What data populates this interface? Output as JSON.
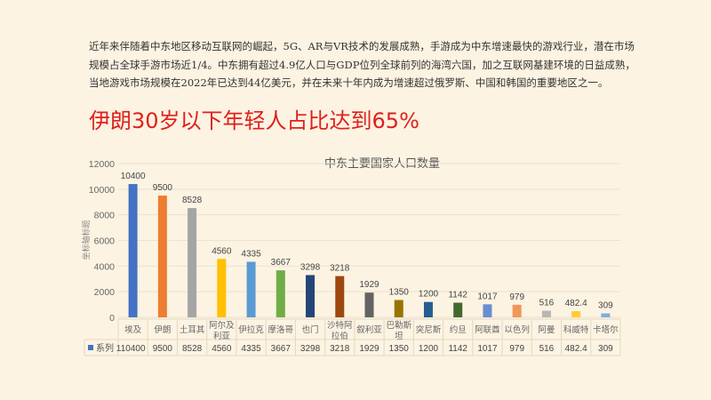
{
  "paragraph": [
    "近年来伴随着中东地区移动互联网的崛起，5G、AR与VR技术的发展成熟，手游成为中东增速最快的游戏行业，潜在市场",
    "规模占全球手游市场近1/4。中东拥有超过4.9亿人口与GDP位列全球前列的海湾六国，加之互联网基建环境的日益成熟，",
    "当地游戏市场规模在2022年已达到44亿美元，并在未来十年内成为增速超过俄罗斯、中国和韩国的重要地区之一。"
  ],
  "headline": "伊朗30岁以下年轻人占比达到65%",
  "chart_data": {
    "type": "bar",
    "title": "中东主要国家人口数量",
    "ylabel": "坐标轴标题",
    "xlabel": "",
    "ylim": [
      0,
      12000
    ],
    "yticks": [
      0,
      2000,
      4000,
      6000,
      8000,
      10000,
      12000
    ],
    "grid": true,
    "data_table": true,
    "categories": [
      "埃及",
      "伊朗",
      "土耳其",
      "阿尔及利亚",
      "伊拉克",
      "摩洛哥",
      "也门",
      "沙特阿拉伯",
      "叙利亚",
      "巴勒斯坦",
      "突尼斯",
      "约旦",
      "阿联酋",
      "以色列",
      "阿曼",
      "科威特",
      "卡塔尔"
    ],
    "category_lines": [
      [
        "埃及"
      ],
      [
        "伊朗"
      ],
      [
        "土耳其"
      ],
      [
        "阿尔及",
        "利亚"
      ],
      [
        "伊拉克"
      ],
      [
        "摩洛哥"
      ],
      [
        "也门"
      ],
      [
        "沙特阿",
        "拉伯"
      ],
      [
        "叙利亚"
      ],
      [
        "巴勒斯",
        "坦"
      ],
      [
        "突尼斯"
      ],
      [
        "约旦"
      ],
      [
        "阿联酋"
      ],
      [
        "以色列"
      ],
      [
        "阿曼"
      ],
      [
        "科威特"
      ],
      [
        "卡塔尔"
      ]
    ],
    "series": [
      {
        "name": "系列 1",
        "values": [
          10400,
          9500,
          8528,
          4560,
          4335,
          3667,
          3298,
          3218,
          1929,
          1350,
          1200,
          1142,
          1017,
          979,
          516,
          482.4,
          309
        ]
      }
    ],
    "colors": [
      "#4472c4",
      "#ed7d31",
      "#a5a5a5",
      "#ffc000",
      "#5b9bd5",
      "#70ad47",
      "#264478",
      "#9e480e",
      "#636363",
      "#997300",
      "#255e91",
      "#43682b",
      "#698ed0",
      "#f1975a",
      "#b7b7b7",
      "#ffcd33",
      "#7cafdd"
    ]
  }
}
